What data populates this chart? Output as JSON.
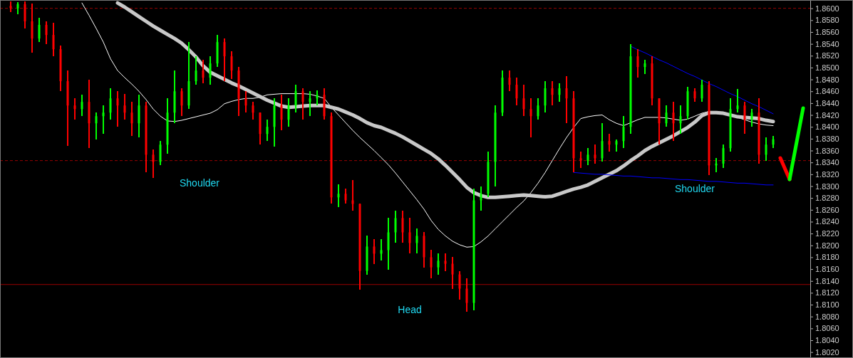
{
  "chart_data": {
    "type": "candlestick",
    "categories": [
      null,
      null,
      null,
      null,
      null,
      null,
      null,
      null,
      null,
      null,
      null,
      null,
      null,
      null,
      null,
      null,
      null,
      null,
      null,
      null,
      null,
      null,
      null,
      null,
      null,
      null,
      null,
      null,
      null,
      null,
      null,
      null,
      null,
      null,
      null,
      null,
      null,
      null,
      null,
      null,
      null,
      null,
      null,
      null,
      null,
      null,
      null,
      null,
      null,
      null,
      null,
      null,
      null,
      null,
      null,
      null,
      null,
      null,
      null,
      null,
      null,
      null,
      null,
      null,
      null,
      null,
      null,
      null,
      null,
      null,
      null,
      null,
      null,
      null,
      null,
      null,
      null,
      null,
      null,
      null,
      null,
      null,
      null,
      null,
      null,
      null,
      null,
      null,
      null,
      null,
      null,
      null,
      null,
      null,
      null,
      null,
      null,
      null,
      null,
      null,
      null,
      null,
      null,
      null,
      null,
      null,
      null,
      null
    ],
    "ohlc": [
      [
        1.8604,
        1.8612,
        1.8593,
        1.86
      ],
      [
        1.86,
        1.861,
        1.859,
        1.8607
      ],
      [
        1.8607,
        1.8612,
        1.8566,
        1.8578
      ],
      [
        1.8578,
        1.8608,
        1.8525,
        1.8549
      ],
      [
        1.8549,
        1.8584,
        1.8543,
        1.8572
      ],
      [
        1.8572,
        1.8578,
        1.854,
        1.8555
      ],
      [
        1.8555,
        1.8575,
        1.8519,
        1.8531
      ],
      [
        1.8531,
        1.8537,
        1.846,
        1.8477
      ],
      [
        1.8477,
        1.8495,
        1.8368,
        1.8436
      ],
      [
        1.8436,
        1.8448,
        1.8412,
        1.843
      ],
      [
        1.843,
        1.8454,
        1.8418,
        1.8442
      ],
      [
        1.8442,
        1.848,
        1.8364,
        1.8406
      ],
      [
        1.8406,
        1.8424,
        1.8379,
        1.8418
      ],
      [
        1.8418,
        1.8436,
        1.8388,
        1.8424
      ],
      [
        1.8424,
        1.8465,
        1.8412,
        1.8448
      ],
      [
        1.8448,
        1.846,
        1.84,
        1.8436
      ],
      [
        1.8436,
        1.8456,
        1.8412,
        1.8424
      ],
      [
        1.8424,
        1.8442,
        1.8385,
        1.8406
      ],
      [
        1.8406,
        1.8454,
        1.8382,
        1.8436
      ],
      [
        1.8436,
        1.8442,
        1.8323,
        1.8353
      ],
      [
        1.8353,
        1.8362,
        1.8314,
        1.8341
      ],
      [
        1.8341,
        1.8376,
        1.8335,
        1.837
      ],
      [
        1.837,
        1.8448,
        1.8355,
        1.8424
      ],
      [
        1.8424,
        1.8495,
        1.8406,
        1.846
      ],
      [
        1.846,
        1.8465,
        1.8418,
        1.8436
      ],
      [
        1.8436,
        1.8543,
        1.843,
        1.8477
      ],
      [
        1.8477,
        1.8519,
        1.8471,
        1.8495
      ],
      [
        1.8495,
        1.8513,
        1.8474,
        1.8483
      ],
      [
        1.8483,
        1.8519,
        1.8471,
        1.8507
      ],
      [
        1.8507,
        1.8555,
        1.8501,
        1.8543
      ],
      [
        1.8543,
        1.8549,
        1.8477,
        1.8519
      ],
      [
        1.8519,
        1.8528,
        1.8481,
        1.8495
      ],
      [
        1.8495,
        1.8501,
        1.8418,
        1.8448
      ],
      [
        1.8448,
        1.846,
        1.8424,
        1.8436
      ],
      [
        1.8436,
        1.8442,
        1.8412,
        1.8424
      ],
      [
        1.8424,
        1.8424,
        1.837,
        1.8388
      ],
      [
        1.8388,
        1.8412,
        1.8376,
        1.84
      ],
      [
        1.84,
        1.8448,
        1.8367,
        1.8436
      ],
      [
        1.8436,
        1.8454,
        1.8394,
        1.8412
      ],
      [
        1.8412,
        1.8448,
        1.84,
        1.8436
      ],
      [
        1.8436,
        1.8471,
        1.8424,
        1.846
      ],
      [
        1.846,
        1.8465,
        1.8412,
        1.8442
      ],
      [
        1.8442,
        1.846,
        1.8418,
        1.8448
      ],
      [
        1.8448,
        1.8462,
        1.8436,
        1.8454
      ],
      [
        1.8454,
        1.8465,
        1.8412,
        1.8418
      ],
      [
        1.8418,
        1.8424,
        1.827,
        1.8281
      ],
      [
        1.8281,
        1.8303,
        1.8264,
        1.8287
      ],
      [
        1.8287,
        1.8296,
        1.827,
        1.8276
      ],
      [
        1.8276,
        1.831,
        1.8258,
        1.827
      ],
      [
        1.827,
        1.827,
        1.8125,
        1.8157
      ],
      [
        1.8157,
        1.8216,
        1.8151,
        1.8198
      ],
      [
        1.8198,
        1.821,
        1.8169,
        1.8186
      ],
      [
        1.8186,
        1.821,
        1.8174,
        1.8192
      ],
      [
        1.8192,
        1.8246,
        1.8159,
        1.8222
      ],
      [
        1.8222,
        1.8258,
        1.8204,
        1.8246
      ],
      [
        1.8246,
        1.8258,
        1.8204,
        1.8222
      ],
      [
        1.8222,
        1.8246,
        1.8186,
        1.8204
      ],
      [
        1.8204,
        1.8228,
        1.8186,
        1.8216
      ],
      [
        1.8216,
        1.8222,
        1.8163,
        1.818
      ],
      [
        1.818,
        1.8192,
        1.8145,
        1.8163
      ],
      [
        1.8163,
        1.8186,
        1.8151,
        1.8174
      ],
      [
        1.8174,
        1.8186,
        1.8157,
        1.8169
      ],
      [
        1.8169,
        1.818,
        1.8127,
        1.8151
      ],
      [
        1.8151,
        1.8157,
        1.8109,
        1.8127
      ],
      [
        1.8127,
        1.8145,
        1.8088,
        1.8103
      ],
      [
        1.8103,
        1.8296,
        1.8091,
        1.8276
      ],
      [
        1.8276,
        1.8299,
        1.8258,
        1.8287
      ],
      [
        1.8287,
        1.8358,
        1.8281,
        1.8341
      ],
      [
        1.8341,
        1.8436,
        1.8299,
        1.8424
      ],
      [
        1.8424,
        1.8495,
        1.8418,
        1.8483
      ],
      [
        1.8483,
        1.8495,
        1.846,
        1.8471
      ],
      [
        1.8471,
        1.8483,
        1.8436,
        1.8448
      ],
      [
        1.8448,
        1.8471,
        1.8418,
        1.843
      ],
      [
        1.843,
        1.8448,
        1.8382,
        1.8418
      ],
      [
        1.8418,
        1.8448,
        1.8412,
        1.8436
      ],
      [
        1.8436,
        1.8477,
        1.8424,
        1.8465
      ],
      [
        1.8465,
        1.8477,
        1.8436,
        1.8454
      ],
      [
        1.8454,
        1.8474,
        1.8442,
        1.8465
      ],
      [
        1.8465,
        1.8486,
        1.8406,
        1.8448
      ],
      [
        1.8448,
        1.846,
        1.8323,
        1.8347
      ],
      [
        1.8347,
        1.8358,
        1.8331,
        1.8343
      ],
      [
        1.8343,
        1.8364,
        1.8335,
        1.8353
      ],
      [
        1.8353,
        1.837,
        1.8338,
        1.8347
      ],
      [
        1.8347,
        1.8406,
        1.8341,
        1.8376
      ],
      [
        1.8376,
        1.8388,
        1.8358,
        1.837
      ],
      [
        1.837,
        1.8379,
        1.8358,
        1.8376
      ],
      [
        1.8376,
        1.8418,
        1.8364,
        1.84
      ],
      [
        1.84,
        1.8539,
        1.8388,
        1.8519
      ],
      [
        1.8519,
        1.8531,
        1.8483,
        1.8501
      ],
      [
        1.8501,
        1.8513,
        1.8489,
        1.8507
      ],
      [
        1.8507,
        1.8519,
        1.8436,
        1.8448
      ],
      [
        1.8448,
        1.8448,
        1.837,
        1.8406
      ],
      [
        1.8406,
        1.8436,
        1.84,
        1.8424
      ],
      [
        1.8424,
        1.8442,
        1.8376,
        1.8406
      ],
      [
        1.8406,
        1.8436,
        1.8388,
        1.8418
      ],
      [
        1.8418,
        1.8467,
        1.8412,
        1.846
      ],
      [
        1.846,
        1.8465,
        1.8442,
        1.8448
      ],
      [
        1.8448,
        1.8479,
        1.8442,
        1.8471
      ],
      [
        1.8471,
        1.8477,
        1.8319,
        1.8335
      ],
      [
        1.8335,
        1.8347,
        1.8323,
        1.8338
      ],
      [
        1.8338,
        1.837,
        1.8331,
        1.8364
      ],
      [
        1.8364,
        1.8448,
        1.8358,
        1.843
      ],
      [
        1.843,
        1.8464,
        1.8424,
        1.8436
      ],
      [
        1.8436,
        1.8442,
        1.8388,
        1.8412
      ],
      [
        1.8412,
        1.843,
        1.84,
        1.8424
      ],
      [
        1.8424,
        1.8448,
        1.8338,
        1.8353
      ],
      [
        1.8353,
        1.8382,
        1.8343,
        1.837
      ],
      [
        1.837,
        1.8385,
        1.8364,
        1.8379
      ]
    ],
    "colors": [
      "#ff0000",
      "#00ff00",
      "#ff0000",
      "#ff0000",
      "#00ff00",
      "#ff0000",
      "#ff0000",
      "#ff0000",
      "#ff0000",
      "#ff0000",
      "#00ff00",
      "#ff0000",
      "#00ff00",
      "#00ff00",
      "#00ff00",
      "#ff0000",
      "#ff0000",
      "#ff0000",
      "#00ff00",
      "#ff0000",
      "#ff0000",
      "#00ff00",
      "#00ff00",
      "#00ff00",
      "#ff0000",
      "#00ff00",
      "#00ff00",
      "#ff0000",
      "#00ff00",
      "#00ff00",
      "#ff0000",
      "#ff0000",
      "#ff0000",
      "#ff0000",
      "#ff0000",
      "#ff0000",
      "#00ff00",
      "#00ff00",
      "#ff0000",
      "#00ff00",
      "#00ff00",
      "#ff0000",
      "#00ff00",
      "#00ff00",
      "#ff0000",
      "#ff0000",
      "#00ff00",
      "#ff0000",
      "#ff0000",
      "#ff0000",
      "#00ff00",
      "#ff0000",
      "#00ff00",
      "#00ff00",
      "#00ff00",
      "#ff0000",
      "#ff0000",
      "#00ff00",
      "#ff0000",
      "#ff0000",
      "#00ff00",
      "#ff0000",
      "#ff0000",
      "#ff0000",
      "#ff0000",
      "#00ff00",
      "#00ff00",
      "#00ff00",
      "#00ff00",
      "#00ff00",
      "#ff0000",
      "#ff0000",
      "#ff0000",
      "#ff0000",
      "#00ff00",
      "#00ff00",
      "#ff0000",
      "#00ff00",
      "#ff0000",
      "#ff0000",
      "#ff0000",
      "#00ff00",
      "#ff0000",
      "#00ff00",
      "#ff0000",
      "#00ff00",
      "#00ff00",
      "#00ff00",
      "#ff0000",
      "#00ff00",
      "#ff0000",
      "#ff0000",
      "#00ff00",
      "#ff0000",
      "#00ff00",
      "#00ff00",
      "#ff0000",
      "#00ff00",
      "#ff0000",
      "#00ff00",
      "#00ff00",
      "#00ff00",
      "#00ff00",
      "#ff0000",
      "#00ff00",
      "#ff0000",
      "#00ff00",
      "#00ff00"
    ],
    "series": [
      {
        "type": "line",
        "color": "#ffffff",
        "values": [
          null,
          null,
          null,
          null,
          null,
          null,
          null,
          null,
          null,
          null,
          1.8609,
          1.8588,
          1.8566,
          1.8543,
          1.8515,
          1.8495,
          1.8483,
          1.8472,
          1.846,
          1.8446,
          1.843,
          1.8418,
          1.841,
          1.8409,
          1.8411,
          1.8414,
          1.8417,
          1.842,
          1.8423,
          1.8429,
          1.8439,
          1.8443,
          1.8446,
          1.8448,
          1.8448,
          1.845,
          1.8454,
          1.8455,
          1.8456,
          1.8456,
          1.8456,
          1.8456,
          1.8455,
          1.8452,
          1.8448,
          1.8433,
          1.842,
          1.8407,
          1.8394,
          1.8382,
          1.8371,
          1.836,
          1.8348,
          1.8336,
          1.8322,
          1.8307,
          1.8292,
          1.8277,
          1.8261,
          1.8242,
          1.8227,
          1.8216,
          1.8207,
          1.8201,
          1.8197,
          1.8198,
          1.8206,
          1.8216,
          1.8228,
          1.824,
          1.8252,
          1.8264,
          1.8275,
          1.8289,
          1.8305,
          1.8323,
          1.8343,
          1.8363,
          1.8382,
          1.8399,
          1.8414,
          1.8417,
          1.8419,
          1.842,
          1.8412,
          1.8406,
          1.8402,
          1.8407,
          1.8412,
          1.8416,
          1.8416,
          1.8416,
          1.8415,
          1.8413,
          1.8411,
          1.8413,
          1.8418,
          1.8423,
          1.8426,
          1.8424,
          1.8423,
          1.842,
          1.8416,
          1.8412,
          1.8408,
          1.8405,
          1.8403,
          1.8402
        ]
      },
      {
        "type": "line",
        "color": "#c8c8c8",
        "values": [
          null,
          null,
          null,
          null,
          null,
          null,
          null,
          null,
          null,
          null,
          null,
          null,
          null,
          null,
          null,
          1.8609,
          1.8602,
          1.8594,
          1.8586,
          1.8578,
          1.857,
          1.8563,
          1.8556,
          1.8549,
          1.8541,
          1.853,
          1.8518,
          1.8503,
          1.8492,
          1.8486,
          1.848,
          1.8474,
          1.8469,
          1.8463,
          1.8457,
          1.8451,
          1.8445,
          1.844,
          1.8435,
          1.8433,
          1.8434,
          1.8435,
          1.8436,
          1.8436,
          1.8436,
          1.8433,
          1.843,
          1.8425,
          1.842,
          1.8414,
          1.8407,
          1.8402,
          1.8399,
          1.8394,
          1.8389,
          1.8383,
          1.8376,
          1.8369,
          1.8362,
          1.8355,
          1.8346,
          1.8335,
          1.8323,
          1.8311,
          1.8298,
          1.8289,
          1.8284,
          1.8281,
          1.8281,
          1.8282,
          1.8283,
          1.8284,
          1.8285,
          1.8284,
          1.8283,
          1.8282,
          1.8283,
          1.8287,
          1.8291,
          1.8295,
          1.8298,
          1.8302,
          1.8308,
          1.8314,
          1.832,
          1.8326,
          1.8334,
          1.8343,
          1.8351,
          1.836,
          1.8367,
          1.8373,
          1.8379,
          1.8385,
          1.8392,
          1.8399,
          1.8408,
          1.8419,
          1.8424,
          1.8424,
          1.8423,
          1.842,
          1.8417,
          1.8416,
          1.8415,
          1.8414,
          1.8411,
          1.8409
        ]
      },
      {
        "type": "line",
        "color": "#0000ff",
        "values": [
          null,
          null,
          null,
          null,
          null,
          null,
          null,
          null,
          null,
          null,
          null,
          null,
          null,
          null,
          null,
          null,
          null,
          null,
          null,
          null,
          null,
          null,
          null,
          null,
          null,
          null,
          null,
          null,
          null,
          null,
          null,
          null,
          null,
          null,
          null,
          null,
          null,
          null,
          null,
          null,
          null,
          null,
          null,
          null,
          null,
          null,
          null,
          null,
          null,
          null,
          null,
          null,
          null,
          null,
          null,
          null,
          null,
          null,
          null,
          null,
          null,
          null,
          null,
          null,
          null,
          null,
          null,
          null,
          null,
          null,
          null,
          null,
          null,
          null,
          null,
          null,
          null,
          null,
          null,
          null,
          null,
          null,
          null,
          null,
          null,
          null,
          null,
          1.8536,
          1.853,
          1.8525,
          1.8519,
          1.8513,
          1.8508,
          1.8502,
          1.8496,
          1.849,
          1.8485,
          1.8479,
          1.8473,
          1.8468,
          1.8462,
          1.8456,
          1.8451,
          1.8445,
          1.8439,
          1.8434,
          1.8428,
          1.8422
        ]
      },
      {
        "type": "line",
        "color": "#0000ff",
        "values": [
          null,
          null,
          null,
          null,
          null,
          null,
          null,
          null,
          null,
          null,
          null,
          null,
          null,
          null,
          null,
          null,
          null,
          null,
          null,
          null,
          null,
          null,
          null,
          null,
          null,
          null,
          null,
          null,
          null,
          null,
          null,
          null,
          null,
          null,
          null,
          null,
          null,
          null,
          null,
          null,
          null,
          null,
          null,
          null,
          null,
          null,
          null,
          null,
          null,
          null,
          null,
          null,
          null,
          null,
          null,
          null,
          null,
          null,
          null,
          null,
          null,
          null,
          null,
          null,
          null,
          null,
          null,
          null,
          null,
          null,
          null,
          null,
          null,
          null,
          null,
          null,
          null,
          null,
          null,
          1.8323,
          1.8322,
          1.8321,
          1.832,
          1.832,
          1.8319,
          1.8318,
          1.8317,
          1.8317,
          1.8316,
          1.8315,
          1.8314,
          1.8314,
          1.8313,
          1.8312,
          1.8311,
          1.8311,
          1.831,
          1.8309,
          1.8308,
          1.8308,
          1.8307,
          1.8306,
          1.8305,
          1.8305,
          1.8304,
          1.8303,
          1.8302,
          1.8302
        ]
      }
    ],
    "ref_lines": [
      {
        "axis": "y",
        "value": 1.86,
        "color": "#990000",
        "line_style": "dashed"
      },
      {
        "axis": "y",
        "value": 1.8343,
        "color": "#990000",
        "line_style": "dashed"
      },
      {
        "axis": "y",
        "value": 1.8134,
        "color": "#990000",
        "line_style": "solid"
      }
    ],
    "annotations": [
      "Shoulder",
      "Head",
      "Shoulder"
    ],
    "ylim": [
      1.801,
      1.8614
    ],
    "yticks": [
      {
        "value": 1.802,
        "label": "1.8020"
      },
      {
        "value": 1.804,
        "label": "1.8040"
      },
      {
        "value": 1.806,
        "label": "1.8060"
      },
      {
        "value": 1.808,
        "label": "1.8080"
      },
      {
        "value": 1.81,
        "label": "1.8100"
      },
      {
        "value": 1.812,
        "label": "1.8120"
      },
      {
        "value": 1.814,
        "label": "1.8140"
      },
      {
        "value": 1.816,
        "label": "1.8160"
      },
      {
        "value": 1.818,
        "label": "1.8180"
      },
      {
        "value": 1.82,
        "label": "1.8200"
      },
      {
        "value": 1.822,
        "label": "1.8220"
      },
      {
        "value": 1.824,
        "label": "1.8240"
      },
      {
        "value": 1.826,
        "label": "1.8260"
      },
      {
        "value": 1.828,
        "label": "1.8280"
      },
      {
        "value": 1.83,
        "label": "1.8300"
      },
      {
        "value": 1.832,
        "label": "1.8320"
      },
      {
        "value": 1.834,
        "label": "1.8340"
      },
      {
        "value": 1.836,
        "label": "1.8360"
      },
      {
        "value": 1.838,
        "label": "1.8380"
      },
      {
        "value": 1.84,
        "label": "1.8400"
      },
      {
        "value": 1.842,
        "label": "1.8420"
      },
      {
        "value": 1.844,
        "label": "1.8440"
      },
      {
        "value": 1.846,
        "label": "1.8460"
      },
      {
        "value": 1.848,
        "label": "1.8480"
      },
      {
        "value": 1.85,
        "label": "1.8500"
      },
      {
        "value": 1.852,
        "label": "1.8520"
      },
      {
        "value": 1.854,
        "label": "1.8540"
      },
      {
        "value": 1.856,
        "label": "1.8560"
      },
      {
        "value": 1.858,
        "label": "1.8580"
      },
      {
        "value": 1.86,
        "label": "1.8600"
      }
    ],
    "tick_labels": "y"
  }
}
